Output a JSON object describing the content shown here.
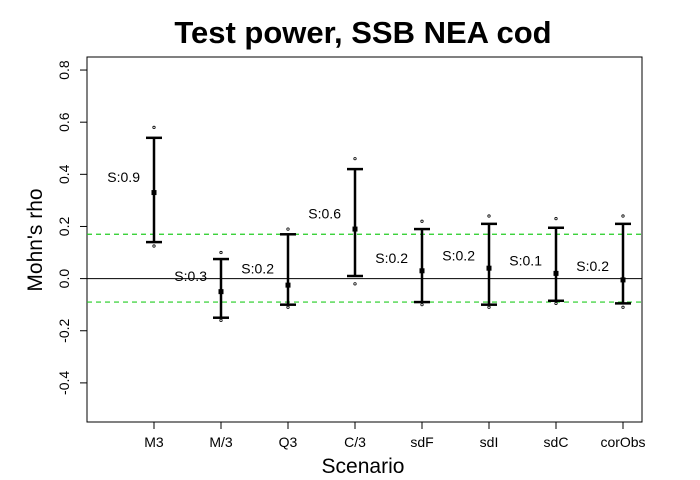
{
  "chart_data": {
    "type": "errorbar",
    "title": "Test power, SSB NEA cod",
    "xlabel": "Scenario",
    "ylabel": "Mohn's rho",
    "ylim": [
      -0.55,
      0.85
    ],
    "yticks": [
      "-0.4",
      "-0.2",
      "0.0",
      "0.2",
      "0.4",
      "0.6",
      "0.8"
    ],
    "categories": [
      "M3",
      "M/3",
      "Q3",
      "C/3",
      "sdF",
      "sdI",
      "sdC",
      "corObs"
    ],
    "point": [
      0.33,
      -0.05,
      -0.025,
      0.19,
      0.03,
      0.04,
      0.02,
      -0.005
    ],
    "lower": [
      0.14,
      -0.15,
      -0.1,
      0.01,
      -0.09,
      -0.1,
      -0.085,
      -0.095
    ],
    "upper": [
      0.54,
      0.075,
      0.17,
      0.42,
      0.19,
      0.21,
      0.195,
      0.21
    ],
    "min": [
      0.125,
      -0.16,
      -0.11,
      -0.02,
      -0.1,
      -0.11,
      -0.095,
      -0.11
    ],
    "max": [
      0.58,
      0.1,
      0.19,
      0.46,
      0.22,
      0.24,
      0.23,
      0.24
    ],
    "annotations": [
      "S:0.9",
      "S:0.3",
      "S:0.2",
      "S:0.6",
      "S:0.2",
      "S:0.2",
      "S:0.1",
      "S:0.2"
    ],
    "annotation_y": [
      0.37,
      -0.01,
      0.02,
      0.23,
      0.06,
      0.07,
      0.05,
      0.03
    ],
    "reference_lines": {
      "zero": 0.0,
      "dashed": [
        0.17,
        -0.09
      ],
      "dashed_color": "#22cc22",
      "zero_color": "#000000"
    },
    "colors": {
      "bars": "#000000",
      "frame": "#000000"
    },
    "grid": false,
    "legend": "none"
  }
}
